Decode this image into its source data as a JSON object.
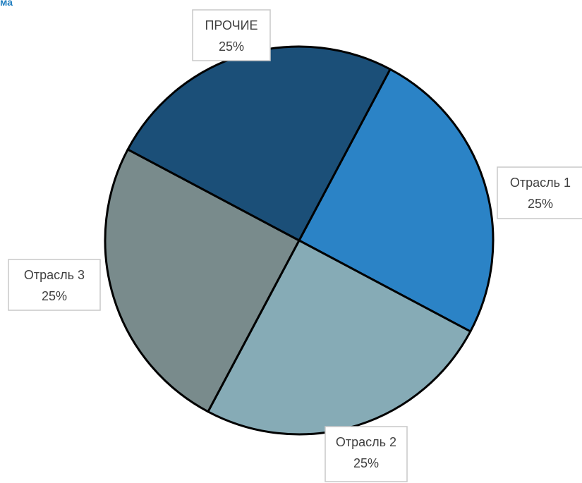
{
  "chart_data": {
    "type": "pie",
    "title": "ма",
    "slices": [
      {
        "label": "Отрасль 1",
        "value": 25,
        "value_label": "25%",
        "color": "#2b83c6"
      },
      {
        "label": "Отрасль 2",
        "value": 25,
        "value_label": "25%",
        "color": "#86abb6"
      },
      {
        "label": "Отрасль 3",
        "value": 25,
        "value_label": "25%",
        "color": "#798b8c"
      },
      {
        "label": "ПРОЧИЕ",
        "value": 25,
        "value_label": "25%",
        "color": "#1b4f78"
      }
    ],
    "legend": "none",
    "data_labels": "callouts"
  }
}
